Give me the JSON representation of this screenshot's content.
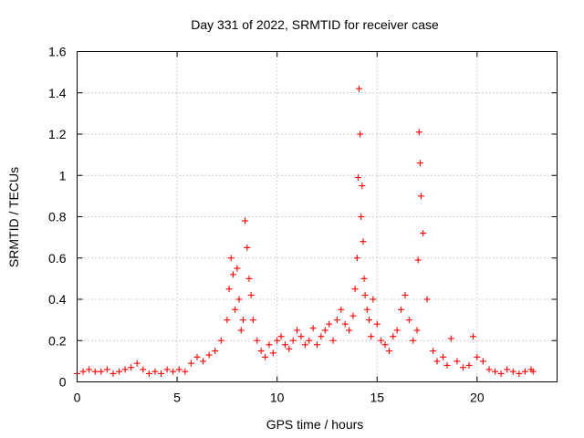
{
  "chart_data": {
    "type": "scatter",
    "title": "Day 331 of 2022, SRMTID for receiver case",
    "xlabel": "GPS time / hours",
    "ylabel": "SRMTID / TECUs",
    "xlim": [
      0,
      24
    ],
    "ylim": [
      0,
      1.6
    ],
    "xticks": [
      0,
      5,
      10,
      15,
      20
    ],
    "xtick_labels": [
      "0",
      "5",
      "10",
      "15",
      "20"
    ],
    "yticks": [
      0,
      0.2,
      0.4,
      0.6,
      0.8,
      1.0,
      1.2,
      1.4,
      1.6
    ],
    "ytick_labels": [
      "0",
      "0.2",
      "0.4",
      "0.6",
      "0.8",
      "1",
      "1.2",
      "1.4",
      "1.6"
    ],
    "grid": true,
    "marker": "+",
    "color": "#ff0000",
    "series": [
      {
        "name": "SRMTID",
        "x": [
          0.0,
          0.3,
          0.6,
          0.9,
          1.2,
          1.5,
          1.8,
          2.1,
          2.4,
          2.7,
          3.0,
          3.3,
          3.6,
          3.9,
          4.2,
          4.5,
          4.8,
          5.1,
          5.4,
          5.7,
          6.0,
          6.3,
          6.6,
          6.9,
          7.2,
          7.5,
          7.6,
          7.7,
          7.8,
          7.9,
          8.0,
          8.1,
          8.2,
          8.3,
          8.4,
          8.5,
          8.6,
          8.7,
          8.8,
          9.0,
          9.2,
          9.4,
          9.6,
          9.8,
          10.0,
          10.2,
          10.4,
          10.6,
          10.8,
          11.0,
          11.2,
          11.4,
          11.6,
          11.8,
          12.0,
          12.2,
          12.4,
          12.6,
          12.8,
          13.0,
          13.2,
          13.4,
          13.6,
          13.8,
          13.9,
          14.0,
          14.05,
          14.1,
          14.15,
          14.2,
          14.25,
          14.3,
          14.35,
          14.4,
          14.5,
          14.6,
          14.7,
          14.8,
          15.0,
          15.2,
          15.4,
          15.6,
          15.8,
          16.0,
          16.2,
          16.4,
          16.6,
          16.8,
          17.0,
          17.05,
          17.1,
          17.15,
          17.2,
          17.3,
          17.5,
          17.8,
          18.0,
          18.3,
          18.5,
          18.7,
          19.0,
          19.3,
          19.6,
          19.8,
          20.0,
          20.3,
          20.6,
          20.9,
          21.2,
          21.5,
          21.8,
          22.1,
          22.4,
          22.7,
          22.8
        ],
        "y": [
          0.04,
          0.05,
          0.06,
          0.05,
          0.05,
          0.06,
          0.04,
          0.05,
          0.06,
          0.07,
          0.09,
          0.06,
          0.04,
          0.05,
          0.04,
          0.06,
          0.05,
          0.06,
          0.05,
          0.09,
          0.12,
          0.1,
          0.13,
          0.15,
          0.2,
          0.3,
          0.45,
          0.6,
          0.52,
          0.35,
          0.55,
          0.4,
          0.25,
          0.3,
          0.78,
          0.65,
          0.5,
          0.42,
          0.3,
          0.2,
          0.15,
          0.12,
          0.18,
          0.14,
          0.2,
          0.22,
          0.18,
          0.16,
          0.2,
          0.25,
          0.22,
          0.18,
          0.2,
          0.26,
          0.18,
          0.22,
          0.25,
          0.28,
          0.2,
          0.3,
          0.35,
          0.28,
          0.25,
          0.32,
          0.45,
          0.6,
          0.99,
          1.42,
          1.2,
          0.8,
          0.95,
          0.68,
          0.5,
          0.42,
          0.35,
          0.3,
          0.22,
          0.4,
          0.28,
          0.2,
          0.18,
          0.15,
          0.22,
          0.25,
          0.35,
          0.42,
          0.3,
          0.2,
          0.25,
          0.59,
          1.21,
          1.06,
          0.9,
          0.72,
          0.4,
          0.15,
          0.1,
          0.12,
          0.08,
          0.21,
          0.1,
          0.07,
          0.08,
          0.22,
          0.12,
          0.1,
          0.06,
          0.05,
          0.04,
          0.06,
          0.05,
          0.04,
          0.05,
          0.06,
          0.05
        ]
      }
    ]
  }
}
